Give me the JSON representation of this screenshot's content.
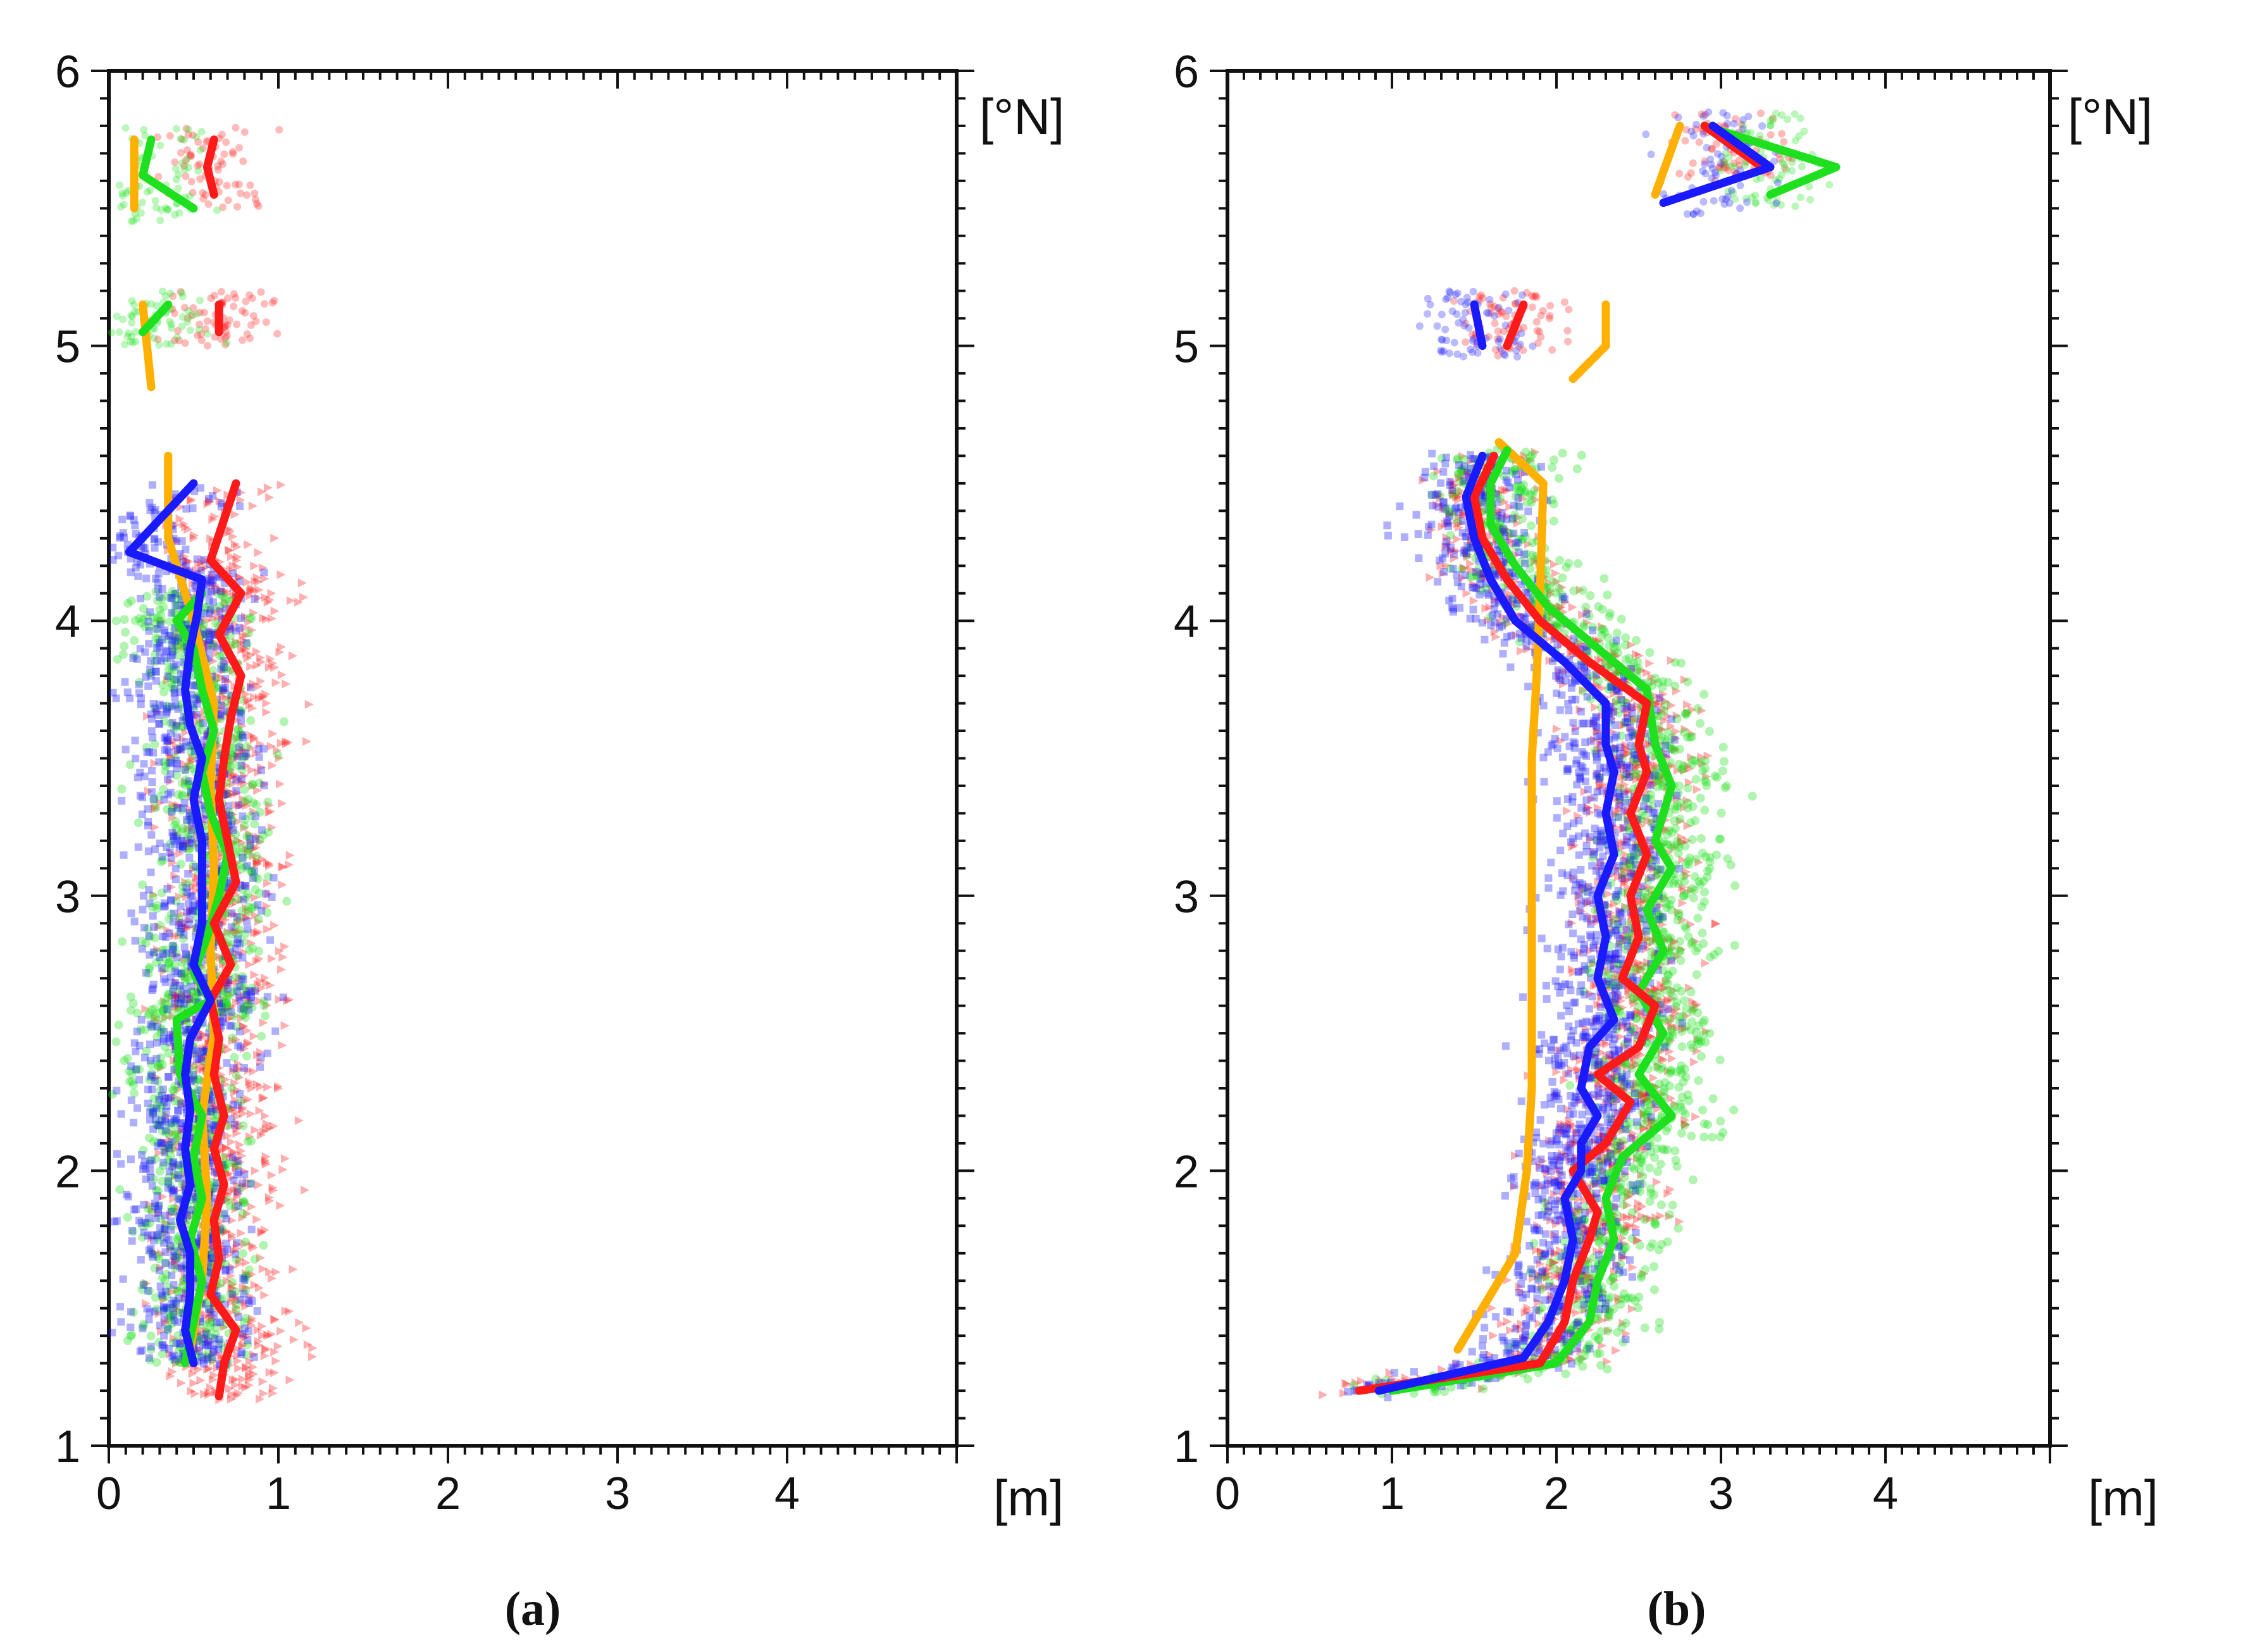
{
  "figure_captions": [
    "(a)",
    "(b)"
  ],
  "colors": {
    "red": "#ff1a1a",
    "green": "#1ee01e",
    "blue": "#1a1aff",
    "orange": "#ffb000",
    "axis": "#111111"
  },
  "chart_data": [
    {
      "type": "scatter",
      "panel": "a",
      "caption": "(a)",
      "x_unit_label": "[m]",
      "y_unit_label": "[°N]",
      "xlim": [
        0,
        5
      ],
      "ylim": [
        1,
        6
      ],
      "xticks": [
        "0",
        "1",
        "2",
        "3",
        "4"
      ],
      "yticks": [
        "1",
        "2",
        "3",
        "4",
        "5",
        "6"
      ],
      "series": [
        {
          "name": "red",
          "color": "red",
          "points": [
            [
              0.65,
              1.18
            ],
            [
              0.68,
              1.3
            ],
            [
              0.75,
              1.42
            ],
            [
              0.6,
              1.55
            ],
            [
              0.65,
              1.68
            ],
            [
              0.62,
              1.82
            ],
            [
              0.68,
              1.95
            ],
            [
              0.62,
              2.08
            ],
            [
              0.68,
              2.2
            ],
            [
              0.62,
              2.35
            ],
            [
              0.65,
              2.48
            ],
            [
              0.6,
              2.62
            ],
            [
              0.72,
              2.75
            ],
            [
              0.62,
              2.9
            ],
            [
              0.75,
              3.05
            ],
            [
              0.7,
              3.2
            ],
            [
              0.65,
              3.35
            ],
            [
              0.68,
              3.5
            ],
            [
              0.72,
              3.65
            ],
            [
              0.78,
              3.8
            ],
            [
              0.65,
              3.95
            ],
            [
              0.78,
              4.1
            ],
            [
              0.6,
              4.22
            ],
            [
              0.75,
              4.5
            ]
          ],
          "segments": [
            [
              [
                0.62,
                5.55
              ],
              [
                0.58,
                5.65
              ],
              [
                0.62,
                5.75
              ]
            ],
            [
              [
                0.65,
                5.05
              ],
              [
                0.65,
                5.15
              ]
            ]
          ]
        },
        {
          "name": "green",
          "color": "green",
          "points": [
            [
              0.45,
              1.3
            ],
            [
              0.5,
              1.45
            ],
            [
              0.55,
              1.6
            ],
            [
              0.48,
              1.75
            ],
            [
              0.55,
              1.9
            ],
            [
              0.5,
              2.05
            ],
            [
              0.55,
              2.2
            ],
            [
              0.42,
              2.35
            ],
            [
              0.4,
              2.55
            ],
            [
              0.6,
              2.62
            ],
            [
              0.5,
              2.72
            ],
            [
              0.58,
              2.85
            ],
            [
              0.65,
              3.0
            ],
            [
              0.7,
              3.15
            ],
            [
              0.6,
              3.3
            ],
            [
              0.55,
              3.45
            ],
            [
              0.62,
              3.6
            ],
            [
              0.55,
              3.75
            ],
            [
              0.5,
              3.9
            ],
            [
              0.4,
              4.0
            ],
            [
              0.55,
              4.1
            ]
          ],
          "segments": [
            [
              [
                0.5,
                5.5
              ],
              [
                0.2,
                5.62
              ],
              [
                0.25,
                5.75
              ]
            ],
            [
              [
                0.2,
                5.05
              ],
              [
                0.35,
                5.15
              ]
            ]
          ]
        },
        {
          "name": "blue",
          "color": "blue",
          "points": [
            [
              0.5,
              1.3
            ],
            [
              0.45,
              1.42
            ],
            [
              0.48,
              1.55
            ],
            [
              0.48,
              1.7
            ],
            [
              0.42,
              1.82
            ],
            [
              0.48,
              1.95
            ],
            [
              0.45,
              2.08
            ],
            [
              0.48,
              2.22
            ],
            [
              0.45,
              2.35
            ],
            [
              0.48,
              2.48
            ],
            [
              0.6,
              2.62
            ],
            [
              0.5,
              2.75
            ],
            [
              0.55,
              2.9
            ],
            [
              0.55,
              3.05
            ],
            [
              0.55,
              3.2
            ],
            [
              0.5,
              3.35
            ],
            [
              0.55,
              3.5
            ],
            [
              0.48,
              3.62
            ],
            [
              0.45,
              3.75
            ],
            [
              0.48,
              3.9
            ],
            [
              0.52,
              4.02
            ],
            [
              0.55,
              4.15
            ],
            [
              0.12,
              4.25
            ],
            [
              0.5,
              4.5
            ]
          ],
          "segments": []
        },
        {
          "name": "orange",
          "color": "orange",
          "points": [
            [
              0.48,
              1.35
            ],
            [
              0.55,
              1.6
            ],
            [
              0.58,
              1.9
            ],
            [
              0.55,
              2.2
            ],
            [
              0.62,
              2.5
            ],
            [
              0.6,
              2.8
            ],
            [
              0.62,
              3.1
            ],
            [
              0.6,
              3.4
            ],
            [
              0.62,
              3.7
            ],
            [
              0.5,
              4.0
            ],
            [
              0.35,
              4.3
            ],
            [
              0.35,
              4.6
            ]
          ],
          "segments": [
            [
              [
                0.15,
                5.5
              ],
              [
                0.15,
                5.75
              ]
            ],
            [
              [
                0.25,
                4.85
              ],
              [
                0.2,
                5.15
              ]
            ]
          ]
        }
      ]
    },
    {
      "type": "scatter",
      "panel": "b",
      "caption": "(b)",
      "x_unit_label": "[m]",
      "y_unit_label": "[°N]",
      "xlim": [
        0,
        5
      ],
      "ylim": [
        1,
        6
      ],
      "xticks": [
        "0",
        "1",
        "2",
        "3",
        "4"
      ],
      "yticks": [
        "1",
        "2",
        "3",
        "4",
        "5",
        "6"
      ],
      "series": [
        {
          "name": "red",
          "color": "red",
          "points": [
            [
              0.8,
              1.2
            ],
            [
              1.9,
              1.3
            ],
            [
              2.05,
              1.45
            ],
            [
              2.1,
              1.6
            ],
            [
              2.2,
              1.75
            ],
            [
              2.25,
              1.85
            ],
            [
              2.1,
              2.0
            ],
            [
              2.3,
              2.1
            ],
            [
              2.45,
              2.25
            ],
            [
              2.25,
              2.35
            ],
            [
              2.5,
              2.45
            ],
            [
              2.6,
              2.6
            ],
            [
              2.4,
              2.7
            ],
            [
              2.5,
              2.85
            ],
            [
              2.45,
              3.0
            ],
            [
              2.55,
              3.15
            ],
            [
              2.45,
              3.3
            ],
            [
              2.55,
              3.45
            ],
            [
              2.5,
              3.55
            ],
            [
              2.55,
              3.7
            ],
            [
              2.2,
              3.85
            ],
            [
              1.9,
              4.0
            ],
            [
              1.7,
              4.15
            ],
            [
              1.55,
              4.3
            ],
            [
              1.5,
              4.45
            ],
            [
              1.62,
              4.6
            ]
          ],
          "segments": [
            [
              [
                1.7,
                5.0
              ],
              [
                1.8,
                5.15
              ]
            ],
            [
              [
                2.9,
                5.8
              ],
              [
                3.25,
                5.65
              ]
            ]
          ]
        },
        {
          "name": "green",
          "color": "green",
          "points": [
            [
              1.0,
              1.2
            ],
            [
              2.0,
              1.3
            ],
            [
              2.2,
              1.45
            ],
            [
              2.25,
              1.6
            ],
            [
              2.35,
              1.75
            ],
            [
              2.3,
              1.9
            ],
            [
              2.4,
              2.05
            ],
            [
              2.7,
              2.2
            ],
            [
              2.5,
              2.35
            ],
            [
              2.65,
              2.5
            ],
            [
              2.5,
              2.65
            ],
            [
              2.65,
              2.8
            ],
            [
              2.55,
              2.95
            ],
            [
              2.7,
              3.1
            ],
            [
              2.6,
              3.2
            ],
            [
              2.7,
              3.4
            ],
            [
              2.6,
              3.55
            ],
            [
              2.55,
              3.75
            ],
            [
              2.25,
              3.9
            ],
            [
              1.95,
              4.05
            ],
            [
              1.75,
              4.2
            ],
            [
              1.6,
              4.35
            ],
            [
              1.6,
              4.5
            ],
            [
              1.7,
              4.62
            ]
          ],
          "segments": [
            [
              [
                2.9,
                5.8
              ],
              [
                3.7,
                5.65
              ],
              [
                3.3,
                5.55
              ]
            ]
          ]
        },
        {
          "name": "blue",
          "color": "blue",
          "points": [
            [
              0.92,
              1.2
            ],
            [
              1.8,
              1.32
            ],
            [
              1.95,
              1.45
            ],
            [
              2.05,
              1.6
            ],
            [
              2.1,
              1.75
            ],
            [
              2.05,
              1.9
            ],
            [
              2.15,
              2.0
            ],
            [
              2.15,
              2.1
            ],
            [
              2.25,
              2.2
            ],
            [
              2.15,
              2.3
            ],
            [
              2.2,
              2.45
            ],
            [
              2.35,
              2.55
            ],
            [
              2.25,
              2.7
            ],
            [
              2.3,
              2.85
            ],
            [
              2.25,
              3.0
            ],
            [
              2.35,
              3.15
            ],
            [
              2.3,
              3.3
            ],
            [
              2.35,
              3.45
            ],
            [
              2.3,
              3.55
            ],
            [
              2.3,
              3.7
            ],
            [
              2.05,
              3.85
            ],
            [
              1.75,
              4.0
            ],
            [
              1.6,
              4.15
            ],
            [
              1.5,
              4.3
            ],
            [
              1.45,
              4.45
            ],
            [
              1.55,
              4.6
            ]
          ],
          "segments": [
            [
              [
                1.5,
                5.15
              ],
              [
                1.55,
                5.0
              ]
            ],
            [
              [
                2.65,
                5.52
              ],
              [
                3.3,
                5.65
              ],
              [
                2.95,
                5.8
              ]
            ]
          ]
        },
        {
          "name": "orange",
          "color": "orange",
          "points": [
            [
              1.4,
              1.35
            ],
            [
              1.55,
              1.5
            ],
            [
              1.75,
              1.7
            ],
            [
              1.82,
              2.0
            ],
            [
              1.85,
              2.3
            ],
            [
              1.85,
              2.6
            ],
            [
              1.85,
              2.9
            ],
            [
              1.85,
              3.2
            ],
            [
              1.85,
              3.5
            ],
            [
              1.88,
              3.8
            ],
            [
              1.9,
              4.1
            ],
            [
              1.92,
              4.5
            ],
            [
              1.65,
              4.65
            ]
          ],
          "segments": [
            [
              [
                2.1,
                4.88
              ],
              [
                2.3,
                5.0
              ],
              [
                2.3,
                5.15
              ]
            ],
            [
              [
                2.6,
                5.55
              ],
              [
                2.75,
                5.8
              ]
            ]
          ]
        }
      ]
    }
  ]
}
